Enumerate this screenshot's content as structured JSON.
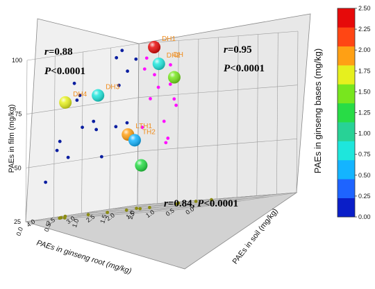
{
  "chart_data": {
    "type": "scatter",
    "projection": "3d",
    "axes": {
      "x": {
        "label": "PAEs in ginseng root (mg/kg)",
        "ticks": [
          "0.0",
          "0.5",
          "1.0",
          "1.5",
          "2.0"
        ],
        "range": [
          0,
          2
        ]
      },
      "y": {
        "label": "PAEs in soil (mg/kg)",
        "ticks": [
          "0.0",
          "0.5",
          "1.0",
          "1.5",
          "2.0",
          "2.5",
          "3.0",
          "3.5",
          "4.0"
        ],
        "range": [
          0,
          4
        ]
      },
      "z": {
        "label": "PAEs in film (mg/kg)",
        "ticks": [
          "25",
          "50",
          "75",
          "100"
        ],
        "range": [
          25,
          100
        ]
      }
    },
    "colorbar": {
      "label": "PAEs in ginseng bases (mg/kg)",
      "ticks": [
        "0.00",
        "0.25",
        "0.50",
        "0.75",
        "1.00",
        "1.25",
        "1.50",
        "1.75",
        "2.00",
        "2.25",
        "2.50"
      ],
      "colors": [
        "#0a1ec8",
        "#1e64ff",
        "#14b4ff",
        "#1ee6dc",
        "#28d296",
        "#28dc46",
        "#78e61e",
        "#e6f01e",
        "#ffa014",
        "#ff4614",
        "#e60a0a"
      ]
    },
    "annotations": [
      {
        "text_r": "r",
        "text_val": "=0.88",
        "text_p": "P",
        "text_pval": "<0.0001"
      },
      {
        "text_r": "r",
        "text_val": "=0.95",
        "text_p": "P",
        "text_pval": "<0.0001"
      },
      {
        "text_r": "r",
        "text_val": "=0.84, ",
        "text_p": "P",
        "text_pval": "<0.0001"
      }
    ],
    "series": [
      {
        "role": "root-film projection",
        "color": "#0a1ea0",
        "points": [
          [
            1.7,
            98
          ],
          [
            1.6,
            95
          ],
          [
            1.95,
            93
          ],
          [
            1.8,
            88
          ],
          [
            0.85,
            86
          ],
          [
            1.65,
            82
          ],
          [
            0.95,
            80
          ],
          [
            0.9,
            78
          ],
          [
            1.2,
            67
          ],
          [
            1.0,
            65
          ],
          [
            1.25,
            63
          ],
          [
            1.6,
            63
          ],
          [
            1.8,
            64
          ],
          [
            0.6,
            60
          ],
          [
            0.55,
            56
          ],
          [
            0.75,
            52
          ],
          [
            1.35,
            50
          ],
          [
            0.35,
            42
          ]
        ]
      },
      {
        "role": "soil-film projection",
        "color": "#ff10ff",
        "points": [
          [
            3.7,
            97
          ],
          [
            3.2,
            89
          ],
          [
            3.8,
            93
          ],
          [
            3.85,
            88
          ],
          [
            3.6,
            85
          ],
          [
            3.2,
            80
          ],
          [
            3.5,
            79
          ],
          [
            3.7,
            74
          ],
          [
            3.1,
            73
          ],
          [
            3.05,
            70
          ],
          [
            3.35,
            63
          ],
          [
            3.9,
            61
          ],
          [
            3.25,
            55
          ],
          [
            3.3,
            53
          ]
        ]
      },
      {
        "role": "root-soil projection",
        "color": "#8c8c14",
        "points": [
          [
            0.2,
            3.3
          ],
          [
            0.25,
            3.5
          ],
          [
            0.3,
            3.55
          ],
          [
            0.35,
            3.6
          ],
          [
            0.6,
            3.85
          ],
          [
            0.55,
            3.2
          ],
          [
            0.75,
            3.0
          ],
          [
            0.95,
            2.8
          ],
          [
            1.05,
            2.6
          ],
          [
            1.15,
            2.5
          ],
          [
            1.2,
            2.9
          ],
          [
            1.5,
            2.3
          ],
          [
            1.7,
            2.55
          ],
          [
            1.8,
            2.25
          ],
          [
            1.9,
            2.0
          ]
        ]
      }
    ],
    "points": [
      {
        "label": "DH1",
        "x": 1.35,
        "y": 2.7,
        "z": 99,
        "c": 2.5
      },
      {
        "label": "DH2",
        "x": 1.4,
        "y": 2.65,
        "z": 91,
        "c": 0.75
      },
      {
        "label": "",
        "x": 1.5,
        "y": 2.4,
        "z": 84,
        "c": 1.4
      },
      {
        "label": "DH3",
        "x": 0.6,
        "y": 3.05,
        "z": 80,
        "c": 0.85
      },
      {
        "label": "DH4",
        "x": 0.55,
        "y": 3.8,
        "z": 78,
        "c": 1.8
      },
      {
        "label": "LTH1",
        "x": 1.0,
        "y": 2.85,
        "z": 60,
        "c": 1.85
      },
      {
        "label": "TH2",
        "x": 1.05,
        "y": 2.75,
        "z": 57,
        "c": 0.6
      },
      {
        "label": "",
        "x": 1.1,
        "y": 2.65,
        "z": 45,
        "c": 1.35
      },
      {
        "label": "DH",
        "x": 1.45,
        "y": 2.55,
        "z": 91,
        "c": -1
      }
    ]
  }
}
